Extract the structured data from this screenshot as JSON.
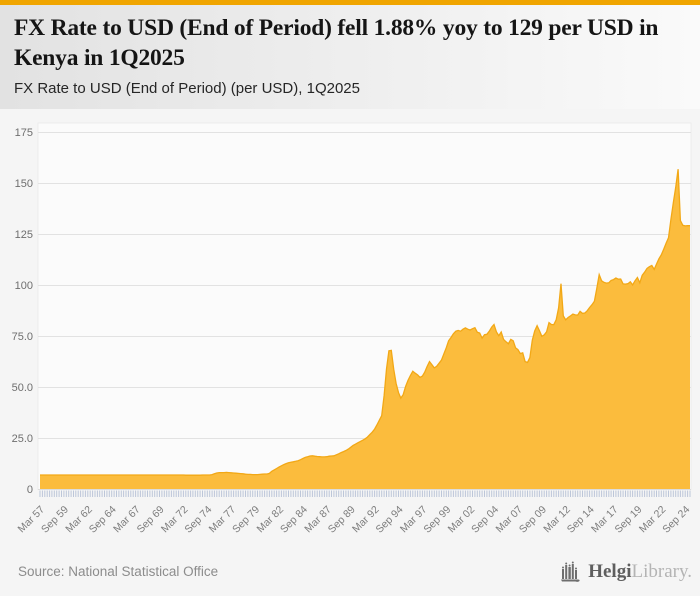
{
  "page": {
    "accent_bar_color": "#F0A500",
    "background": "#f5f5f5"
  },
  "header": {
    "title": "FX Rate to USD (End of Period) fell 1.88% yoy to 129 per USD in Kenya in 1Q2025",
    "subtitle": "FX Rate to USD (End of Period) (per USD), 1Q2025"
  },
  "chart_data": {
    "type": "area",
    "title": "FX Rate to USD (End of Period) (per USD), 1Q2025",
    "country": "Kenya",
    "unit": "per USD",
    "frequency": "quarterly",
    "x_start": "Mar 1957",
    "x_end": "Mar 2025",
    "ylim": [
      0,
      175
    ],
    "grid": true,
    "legend": false,
    "area_color": "#FBBC3D",
    "line_color": "#F2A816",
    "tick_color": "#bcc6d9",
    "yticks": [
      {
        "value": 0,
        "label": "0"
      },
      {
        "value": 25,
        "label": "25.0"
      },
      {
        "value": 50,
        "label": "50.0"
      },
      {
        "value": 75,
        "label": "75.0"
      },
      {
        "value": 100,
        "label": "100"
      },
      {
        "value": 125,
        "label": "125"
      },
      {
        "value": 150,
        "label": "150"
      },
      {
        "value": 175,
        "label": "175"
      }
    ],
    "xtick_step_quarters": 10,
    "xtick_labels": [
      "Mar 57",
      "Sep 59",
      "Mar 62",
      "Sep 64",
      "Mar 67",
      "Sep 69",
      "Mar 72",
      "Sep 74",
      "Mar 77",
      "Sep 79",
      "Mar 82",
      "Sep 84",
      "Mar 87",
      "Sep 89",
      "Mar 92",
      "Sep 94",
      "Mar 97",
      "Sep 99",
      "Mar 02",
      "Sep 04",
      "Mar 07",
      "Sep 09",
      "Mar 12",
      "Sep 14",
      "Mar 17",
      "Sep 19",
      "Mar 22",
      "Sep 24"
    ],
    "values": [
      7.1,
      7.1,
      7.1,
      7.1,
      7.1,
      7.1,
      7.1,
      7.1,
      7.1,
      7.1,
      7.1,
      7.1,
      7.1,
      7.1,
      7.1,
      7.1,
      7.1,
      7.1,
      7.1,
      7.1,
      7.1,
      7.1,
      7.1,
      7.1,
      7.1,
      7.1,
      7.1,
      7.1,
      7.1,
      7.1,
      7.1,
      7.1,
      7.1,
      7.1,
      7.1,
      7.1,
      7.1,
      7.1,
      7.1,
      7.1,
      7.1,
      7.1,
      7.1,
      7.1,
      7.1,
      7.1,
      7.1,
      7.1,
      7.1,
      7.1,
      7.1,
      7.1,
      7.1,
      7.1,
      7.1,
      7.1,
      7.1,
      7.1,
      7.1,
      7.1,
      7.1,
      7.0,
      7.0,
      7.0,
      7.0,
      7.0,
      7.0,
      7.0,
      7.1,
      7.1,
      7.1,
      7.1,
      7.3,
      7.7,
      8.1,
      8.3,
      8.3,
      8.3,
      8.4,
      8.3,
      8.2,
      8.1,
      8.0,
      7.9,
      7.8,
      7.7,
      7.5,
      7.4,
      7.4,
      7.3,
      7.3,
      7.3,
      7.4,
      7.5,
      7.6,
      7.6,
      7.9,
      8.9,
      9.6,
      10.3,
      11.0,
      11.6,
      12.2,
      12.7,
      13.1,
      13.4,
      13.6,
      13.8,
      14.1,
      14.6,
      15.2,
      15.8,
      16.1,
      16.4,
      16.5,
      16.3,
      16.2,
      16.1,
      16.0,
      16.0,
      16.1,
      16.3,
      16.4,
      16.5,
      17.0,
      17.5,
      18.1,
      18.6,
      19.1,
      19.8,
      20.7,
      21.6,
      22.2,
      22.9,
      23.5,
      24.1,
      24.8,
      25.7,
      26.9,
      28.1,
      29.6,
      31.6,
      33.9,
      36.2,
      46.0,
      59.0,
      68.0,
      68.2,
      59.0,
      52.0,
      47.5,
      44.8,
      46.5,
      50.5,
      53.5,
      55.9,
      58.0,
      57.0,
      56.2,
      55.0,
      55.6,
      57.5,
      60.3,
      62.7,
      61.2,
      59.6,
      60.4,
      61.9,
      63.5,
      66.5,
      69.5,
      72.9,
      74.5,
      76.3,
      77.6,
      78.0,
      77.6,
      78.6,
      79.2,
      78.6,
      78.2,
      78.8,
      79.3,
      77.1,
      76.7,
      74.2,
      75.9,
      76.1,
      77.6,
      79.6,
      80.9,
      77.3,
      75.4,
      77.2,
      73.6,
      72.4,
      71.4,
      73.6,
      72.9,
      69.4,
      68.6,
      66.6,
      67.0,
      62.7,
      62.3,
      64.7,
      73.2,
      77.7,
      80.3,
      77.9,
      75.1,
      75.8,
      77.3,
      81.8,
      80.9,
      80.8,
      83.2,
      89.0,
      100.9,
      85.1,
      83.2,
      84.3,
      85.1,
      86.0,
      85.6,
      85.5,
      87.3,
      86.3,
      86.5,
      87.6,
      89.2,
      90.6,
      92.3,
      98.6,
      105.3,
      102.3,
      101.5,
      101.2,
      101.3,
      102.5,
      102.9,
      103.7,
      103.1,
      103.2,
      100.8,
      100.7,
      100.9,
      101.8,
      100.3,
      102.3,
      103.9,
      101.3,
      105.0,
      106.5,
      108.4,
      109.2,
      109.8,
      107.9,
      110.5,
      113.1,
      115.0,
      117.8,
      120.7,
      123.4,
      132.3,
      140.5,
      148.1,
      157.0,
      131.8,
      129.5,
      129.2,
      129.3,
      129.3
    ]
  },
  "footer": {
    "source": "Source: National Statistical Office",
    "logo": {
      "name": "HelgiLibrary",
      "part1": "Helgi",
      "part2": "Library."
    }
  }
}
